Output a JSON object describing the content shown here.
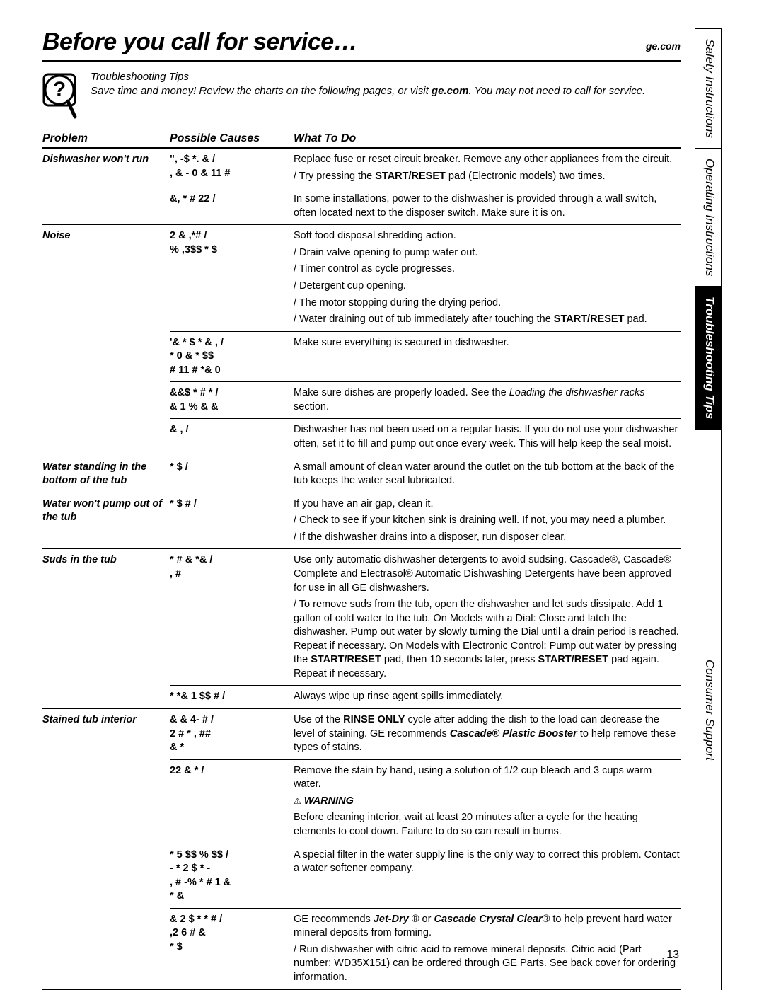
{
  "header": {
    "title": "Before you call for service…",
    "site": "ge.com"
  },
  "tips": {
    "heading": "Troubleshooting Tips",
    "body_pre": "Save time and money! Review the charts on the following pages, or visit ",
    "body_bold": "ge.com",
    "body_post": ". You may not need to call for service."
  },
  "columns": {
    "problem": "Problem",
    "causes": "Possible Causes",
    "what": "What To Do"
  },
  "sections": [
    {
      "problem": "Dishwasher won't run",
      "rows": [
        {
          "cause": "\",  -$ *.  &     /\n, & -  0  & 11 #",
          "whats": [
            "Replace fuse or reset circuit breaker. Remove any other appliances from the circuit.",
            "/ Try pressing the <b>START/RESET</b> pad (Electronic models) two times."
          ]
        },
        {
          "cause": "&, * # 22        /",
          "whats": [
            "In some installations, power to the dishwasher is provided through a wall switch, often located next to the disposer switch. Make sure it is on."
          ]
        }
      ]
    },
    {
      "problem": "Noise",
      "rows": [
        {
          "cause": "2 &   ,*#        /\n% ,3$$     *  $",
          "whats": [
            "Soft food disposal shredding action.",
            "/ Drain valve opening to pump water out.",
            "/ Timer control as cycle progresses.",
            "/ Detergent cup opening.",
            "/ The motor stopping during the drying period.",
            "/ Water draining out of tub immediately after touching the <b>START/RESET</b> pad."
          ]
        },
        {
          "cause": "'& * $   * & ,   /\n*  0    & *  $$\n# 11 # *&   0",
          "whats": [
            "Make sure everything is secured in dishwasher."
          ]
        },
        {
          "cause": "&&$ * #     *   /\n&  1 %    & &",
          "whats": [
            "Make sure dishes are properly loaded. See the <i>Loading the dishwasher racks</i> section."
          ]
        },
        {
          "cause": "&  ,           /",
          "whats": [
            "Dishwasher has not been used on a regular basis. If you do not use your dishwasher often, set it to fill and pump out once every week. This will help keep the seal moist."
          ]
        }
      ]
    },
    {
      "problem": "Water standing in the bottom of the tub",
      "rows": [
        {
          "cause": "*  $           /",
          "whats": [
            "A small amount of clean water around the outlet on the tub bottom at the back of the tub keeps the water seal lubricated."
          ]
        }
      ]
    },
    {
      "problem": "Water won't pump out of the tub",
      "rows": [
        {
          "cause": "*   $  #        /",
          "whats": [
            "If you have an air gap, clean it.",
            "/ Check to see if your kitchen sink is draining well. If not, you may need a plumber.",
            "/ If the dishwasher drains into a disposer, run disposer clear."
          ]
        }
      ]
    },
    {
      "problem": "Suds in the tub",
      "rows": [
        {
          "cause": "* # &  *&       /\n, #",
          "whats": [
            "Use only automatic dishwasher detergents to avoid sudsing. Cascade®, Cascade® Complete and Electrasol® Automatic Dishwashing Detergents have been approved for use in all GE dishwashers.",
            "/ To remove suds from the tub, open the dishwasher and let suds dissipate. Add 1 gallon of cold water to the tub. On Models with a Dial: Close and latch the dishwasher. Pump out water by slowly turning the Dial until a drain period is reached. Repeat if necessary. On Models with Electronic Control: Pump out water by pressing the <b>START/RESET</b> pad, then 10 seconds later, press <b>START/RESET</b> pad again. Repeat if necessary."
          ]
        },
        {
          "cause": "*  *&   1 $$ # /",
          "whats": [
            "Always wipe up rinse agent spills immediately."
          ]
        }
      ]
    },
    {
      "problem": "Stained tub interior",
      "rows": [
        {
          "cause": "&  & 4-  #    /\n2 #  * ,  ##\n& *",
          "whats": [
            "Use of the <b>RINSE ONLY</b> cycle after adding the dish to the load can decrease the level of staining. GE recommends <b><i>Cascade® Plastic Booster</i></b> to help remove these types of stains."
          ]
        },
        {
          "cause": "22  & *      /",
          "whats": [
            "Remove the stain by hand, using a solution of 1/2 cup bleach and 3 cups warm water.",
            "<span class='warn-icon'>⚠</span> <b><i>WARNING</i></b>",
            "Before cleaning interior, wait at least 20 minutes after a cycle for the heating elements to cool down. Failure to do so can result in burns."
          ]
        },
        {
          "cause": "* 5  $$ % $$    /\n- * 2 $  * -\n, # -%  * # 1 &\n*  &",
          "whats": [
            "A special filter in the water supply line is the only way to correct this problem. Contact a water softener company."
          ]
        },
        {
          "cause": "& 2 $ * * #    /\n,2 6 # &\n*  $",
          "whats": [
            "GE recommends <b><i>Jet-Dry</i></b> ® or <b><i>Cascade Crystal Clear</i></b>® to help prevent hard water mineral deposits from forming.",
            "/ Run dishwasher with citric acid to remove mineral deposits. Citric acid (Part number: WD35X151) can be ordered through GE Parts. See back cover for ordering information."
          ]
        }
      ]
    }
  ],
  "tabs": [
    {
      "label": "Safety Instructions",
      "active": false
    },
    {
      "label": "Operating Instructions",
      "active": false
    },
    {
      "label": "Troubleshooting Tips",
      "active": true
    },
    {
      "label": "Consumer Support",
      "active": false
    }
  ],
  "page_number": "13"
}
